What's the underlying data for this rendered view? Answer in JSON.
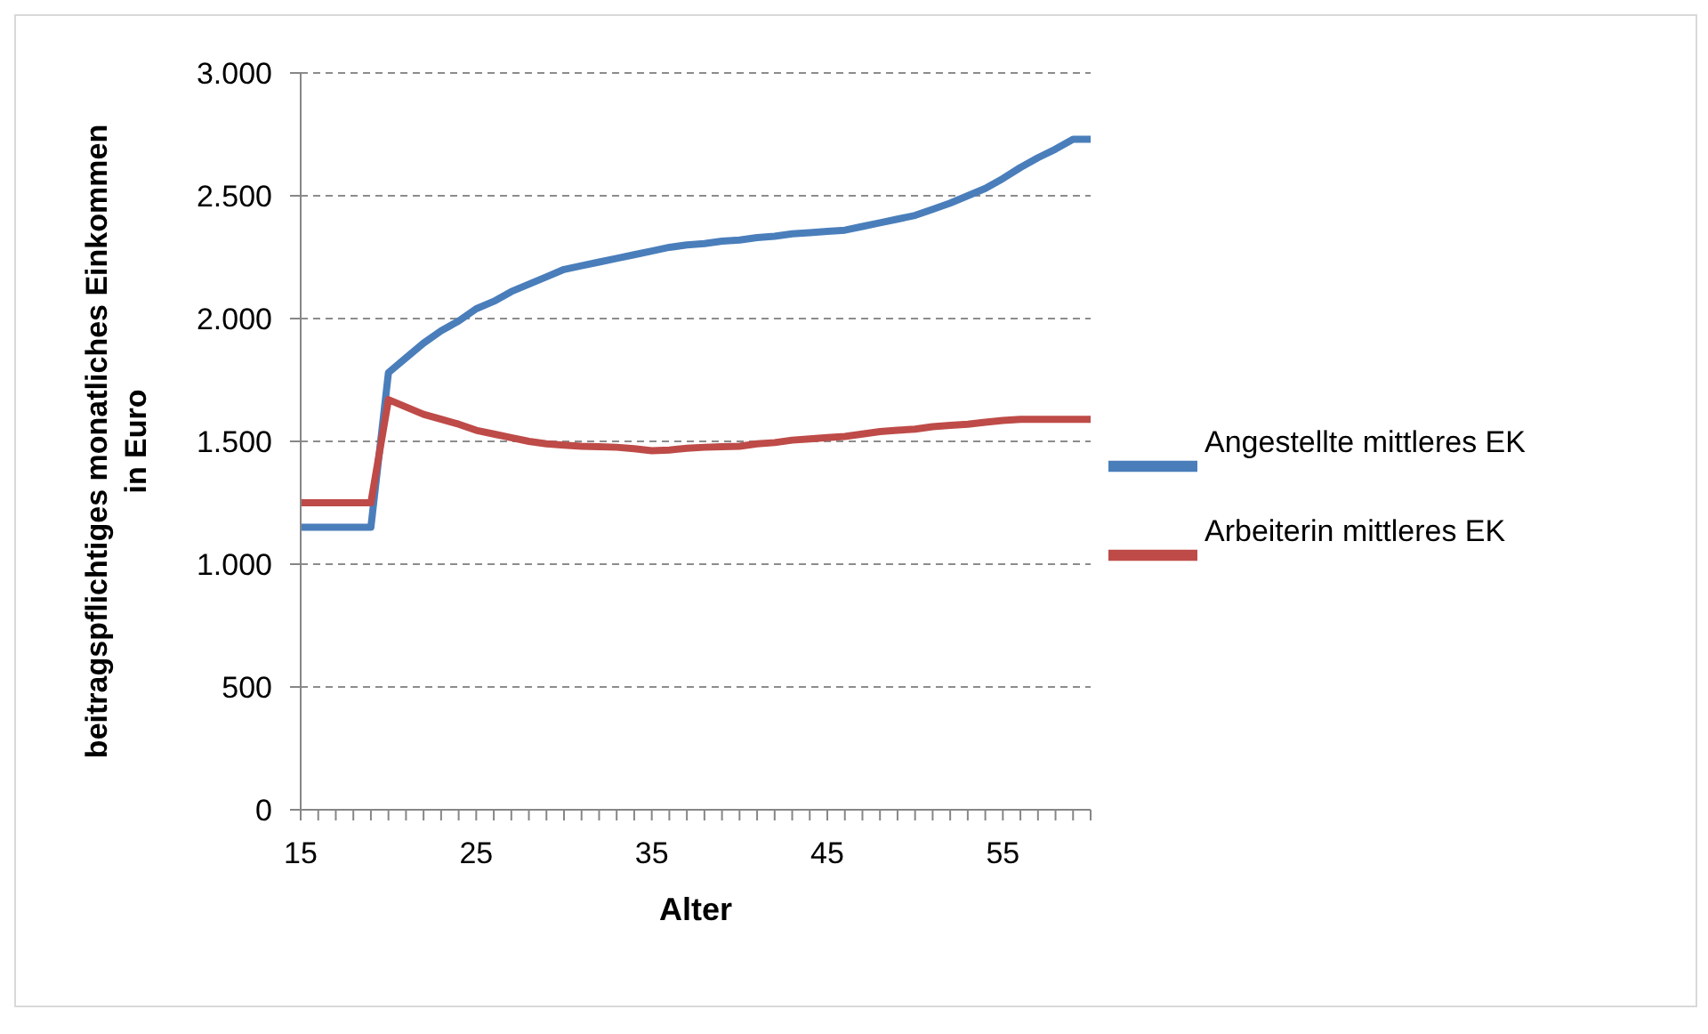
{
  "chart_data": {
    "type": "line",
    "xlabel": "Alter",
    "ylabel": "beitragspflichtiges monatliches Einkommen in Euro",
    "categories": [
      "15",
      null,
      null,
      null,
      null,
      null,
      null,
      null,
      null,
      null,
      "25",
      null,
      null,
      null,
      null,
      null,
      null,
      null,
      null,
      null,
      "35",
      null,
      null,
      null,
      null,
      null,
      null,
      null,
      null,
      null,
      "45",
      null,
      null,
      null,
      null,
      null,
      null,
      null,
      null,
      null,
      "55",
      null,
      null,
      null,
      null,
      null
    ],
    "series": [
      {
        "name": "Angestellte mittleres EK",
        "color": "#4a7ebb",
        "values": [
          1150,
          1150,
          1150,
          1150,
          1150,
          1780,
          1840,
          1900,
          1950,
          1990,
          2040,
          2070,
          2110,
          2140,
          2170,
          2200,
          2215,
          2230,
          2245,
          2260,
          2275,
          2290,
          2300,
          2305,
          2315,
          2320,
          2330,
          2335,
          2345,
          2350,
          2355,
          2360,
          2375,
          2390,
          2405,
          2420,
          2445,
          2470,
          2500,
          2530,
          2570,
          2615,
          2655,
          2690,
          2730,
          2730
        ]
      },
      {
        "name": "Arbeiterin mittleres EK",
        "color": "#be4b48",
        "values": [
          1250,
          1250,
          1250,
          1250,
          1250,
          1670,
          1640,
          1610,
          1590,
          1570,
          1545,
          1530,
          1515,
          1500,
          1490,
          1485,
          1480,
          1478,
          1476,
          1470,
          1462,
          1465,
          1472,
          1476,
          1478,
          1480,
          1490,
          1495,
          1505,
          1510,
          1515,
          1520,
          1530,
          1540,
          1545,
          1550,
          1560,
          1565,
          1570,
          1578,
          1585,
          1590,
          1590,
          1590,
          1590,
          1590
        ]
      }
    ],
    "ylim": [
      0,
      3000
    ],
    "yticks": [
      0,
      500,
      {
        "value": 1000,
        "label": "1.000"
      },
      {
        "value": 1500,
        "label": "1.500"
      },
      {
        "value": 2000,
        "label": "2.000"
      },
      {
        "value": 2500,
        "label": "2.500"
      },
      {
        "value": 3000,
        "label": "3.000"
      }
    ],
    "grid": "y",
    "legend": "right",
    "marker": "none",
    "line_style": "solid"
  }
}
